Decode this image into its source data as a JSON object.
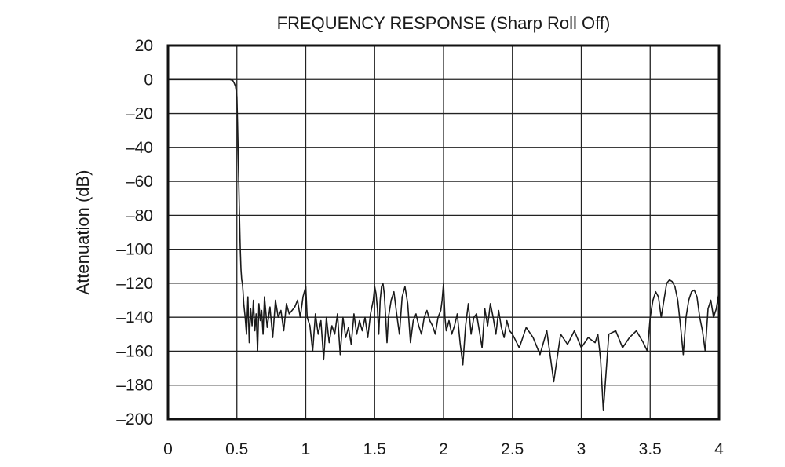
{
  "chart_data": {
    "type": "line",
    "title": "FREQUENCY RESPONSE (Sharp Roll Off)",
    "xlabel": "",
    "ylabel": "Attenuation (dB)",
    "xlim": [
      0,
      4
    ],
    "ylim": [
      -200,
      20
    ],
    "x_ticks": [
      0,
      0.5,
      1,
      1.5,
      2,
      2.5,
      3,
      3.5,
      4
    ],
    "x_tick_labels": [
      "0",
      "0.5",
      "1",
      "1.5",
      "2",
      "2.5",
      "3",
      "3.5",
      "4"
    ],
    "y_ticks": [
      20,
      0,
      -20,
      -40,
      -60,
      -80,
      -100,
      -120,
      -140,
      -160,
      -180,
      -200
    ],
    "y_tick_labels": [
      "20",
      "0",
      "–20",
      "–40",
      "–60",
      "–80",
      "–100",
      "–120",
      "–140",
      "–160",
      "–180",
      "–200"
    ],
    "grid": true,
    "line_color": "#1a1a1a",
    "series": [
      {
        "x": [
          0,
          0.1,
          0.2,
          0.3,
          0.4,
          0.45,
          0.47,
          0.48,
          0.49,
          0.5,
          0.505,
          0.51,
          0.515,
          0.52,
          0.525,
          0.53,
          0.535,
          0.54,
          0.545,
          0.55,
          0.56,
          0.57,
          0.58,
          0.59,
          0.6,
          0.61,
          0.62,
          0.63,
          0.64,
          0.65,
          0.66,
          0.67,
          0.68,
          0.69,
          0.7,
          0.72,
          0.74,
          0.76,
          0.78,
          0.8,
          0.82,
          0.84,
          0.86,
          0.88,
          0.9,
          0.92,
          0.94,
          0.96,
          0.98,
          0.99,
          1.0,
          1.01,
          1.03,
          1.05,
          1.07,
          1.09,
          1.11,
          1.13,
          1.15,
          1.17,
          1.19,
          1.21,
          1.23,
          1.25,
          1.27,
          1.29,
          1.31,
          1.33,
          1.35,
          1.37,
          1.39,
          1.41,
          1.43,
          1.45,
          1.47,
          1.49,
          1.5,
          1.51,
          1.52,
          1.53,
          1.54,
          1.55,
          1.56,
          1.57,
          1.58,
          1.59,
          1.6,
          1.62,
          1.64,
          1.66,
          1.68,
          1.7,
          1.72,
          1.74,
          1.76,
          1.78,
          1.8,
          1.82,
          1.84,
          1.86,
          1.88,
          1.9,
          1.92,
          1.94,
          1.96,
          1.98,
          1.99,
          2.0,
          2.01,
          2.02,
          2.04,
          2.06,
          2.08,
          2.1,
          2.12,
          2.14,
          2.16,
          2.18,
          2.2,
          2.22,
          2.24,
          2.26,
          2.28,
          2.3,
          2.32,
          2.34,
          2.36,
          2.38,
          2.4,
          2.42,
          2.44,
          2.46,
          2.48,
          2.5,
          2.55,
          2.6,
          2.65,
          2.7,
          2.75,
          2.8,
          2.85,
          2.9,
          2.95,
          3.0,
          3.05,
          3.1,
          3.12,
          3.14,
          3.16,
          3.2,
          3.25,
          3.3,
          3.35,
          3.4,
          3.45,
          3.48,
          3.5,
          3.52,
          3.54,
          3.56,
          3.58,
          3.6,
          3.62,
          3.64,
          3.66,
          3.68,
          3.7,
          3.72,
          3.74,
          3.76,
          3.78,
          3.8,
          3.82,
          3.84,
          3.86,
          3.88,
          3.9,
          3.92,
          3.94,
          3.96,
          3.98,
          4.0
        ],
        "y": [
          0,
          0,
          0,
          0,
          0,
          0,
          -0.5,
          -2,
          -4,
          -10,
          -25,
          -45,
          -65,
          -85,
          -100,
          -112,
          -118,
          -120,
          -125,
          -132,
          -140,
          -150,
          -128,
          -155,
          -135,
          -145,
          -130,
          -148,
          -138,
          -160,
          -132,
          -142,
          -136,
          -150,
          -128,
          -146,
          -134,
          -152,
          -130,
          -140,
          -136,
          -148,
          -132,
          -138,
          -136,
          -134,
          -130,
          -140,
          -128,
          -125,
          -122,
          -140,
          -145,
          -160,
          -138,
          -150,
          -142,
          -165,
          -140,
          -155,
          -145,
          -150,
          -138,
          -162,
          -140,
          -152,
          -146,
          -156,
          -138,
          -150,
          -142,
          -148,
          -140,
          -152,
          -138,
          -130,
          -122,
          -126,
          -135,
          -150,
          -130,
          -122,
          -120,
          -126,
          -140,
          -155,
          -140,
          -130,
          -125,
          -138,
          -150,
          -128,
          -122,
          -132,
          -155,
          -142,
          -138,
          -145,
          -150,
          -140,
          -136,
          -142,
          -145,
          -150,
          -140,
          -136,
          -130,
          -120,
          -140,
          -148,
          -142,
          -150,
          -145,
          -138,
          -155,
          -168,
          -145,
          -132,
          -150,
          -140,
          -138,
          -148,
          -158,
          -135,
          -145,
          -132,
          -140,
          -150,
          -136,
          -146,
          -152,
          -142,
          -148,
          -150,
          -158,
          -146,
          -152,
          -162,
          -148,
          -178,
          -150,
          -156,
          -148,
          -158,
          -152,
          -155,
          -150,
          -165,
          -195,
          -150,
          -148,
          -158,
          -152,
          -148,
          -155,
          -160,
          -140,
          -130,
          -125,
          -128,
          -140,
          -130,
          -120,
          -118,
          -119,
          -122,
          -130,
          -145,
          -162,
          -140,
          -130,
          -125,
          -124,
          -128,
          -140,
          -148,
          -160,
          -135,
          -130,
          -140,
          -135,
          -125
        ]
      }
    ]
  }
}
